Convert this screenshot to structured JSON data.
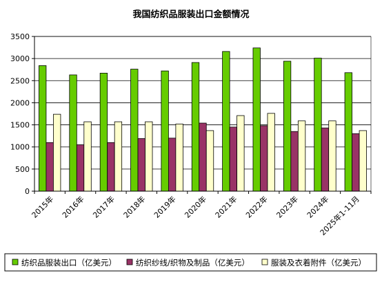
{
  "chart_data": {
    "type": "bar",
    "title": "我国纺织品服装出口金额情况",
    "xlabel": "",
    "ylabel": "",
    "ylim": [
      0,
      3500
    ],
    "yticks": [
      0,
      500,
      1000,
      1500,
      2000,
      2500,
      3000,
      3500
    ],
    "grid": true,
    "legend_position": "bottom",
    "categories": [
      "2015年",
      "2016年",
      "2017年",
      "2018年",
      "2019年",
      "2020年",
      "2021年",
      "2022年",
      "2023年",
      "2024年",
      "2025年1-11月"
    ],
    "series": [
      {
        "name": "纺织品服装出口（亿美元）",
        "color": "#66cc00",
        "values": [
          2840,
          2630,
          2670,
          2760,
          2720,
          2910,
          3160,
          3240,
          2940,
          3010,
          2680
        ]
      },
      {
        "name": "纺织纱线/织物及制品（亿美元）",
        "color": "#993366",
        "values": [
          1100,
          1050,
          1100,
          1190,
          1200,
          1540,
          1450,
          1480,
          1350,
          1430,
          1300
        ]
      },
      {
        "name": "服装及衣着附件（亿美元）",
        "color": "#ffffcc",
        "values": [
          1740,
          1570,
          1570,
          1570,
          1520,
          1370,
          1710,
          1760,
          1590,
          1590,
          1370
        ]
      }
    ]
  }
}
